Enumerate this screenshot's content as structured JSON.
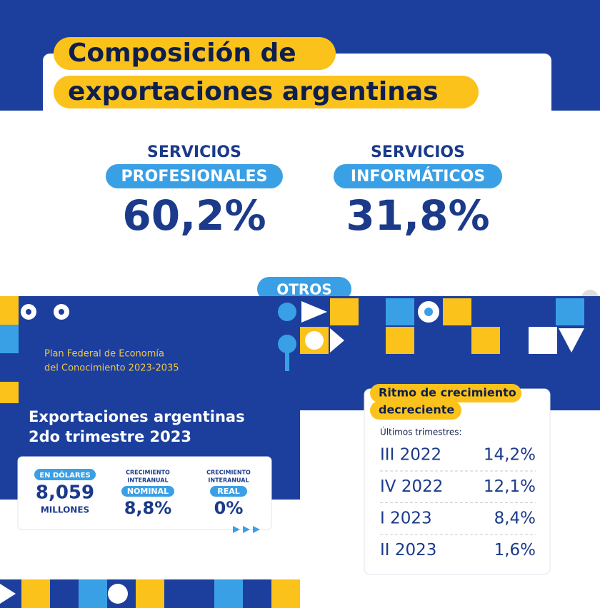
{
  "top_panel": {
    "title": [
      "Composición de",
      "exportaciones argentinas"
    ],
    "items": [
      {
        "line1": "SERVICIOS",
        "line2": "PROFESIONALES",
        "value": "60,2%"
      },
      {
        "line1": "SERVICIOS",
        "line2": "INFORMÁTICOS",
        "value": "31,8%"
      }
    ],
    "other": "OTROS"
  },
  "left_panel": {
    "plan": [
      "Plan Federal de Economía",
      "del Conocimiento 2023-2035"
    ],
    "title": [
      "Exportaciones argentinas",
      "2do trimestre 2023"
    ],
    "stats": [
      {
        "tag": "EN DÓLARES",
        "value": "8,059",
        "unit": "MILLONES"
      },
      {
        "label": [
          "CRECIMIENTO",
          "INTERANUAL"
        ],
        "tag": "NOMINAL",
        "value": "8,8%"
      },
      {
        "label": [
          "CRECIMIENTO",
          "INTERANUAL"
        ],
        "tag": "REAL",
        "value": "0%"
      }
    ]
  },
  "right_panel": {
    "title": [
      "Ritmo de crecimiento",
      "decreciente"
    ],
    "subtitle": "Últimos trimestres:",
    "rows": [
      [
        "III 2022",
        "14,2%"
      ],
      [
        "IV 2022",
        "12,1%"
      ],
      [
        "I 2023",
        "8,4%"
      ],
      [
        "II 2023",
        "1,6%"
      ]
    ]
  }
}
